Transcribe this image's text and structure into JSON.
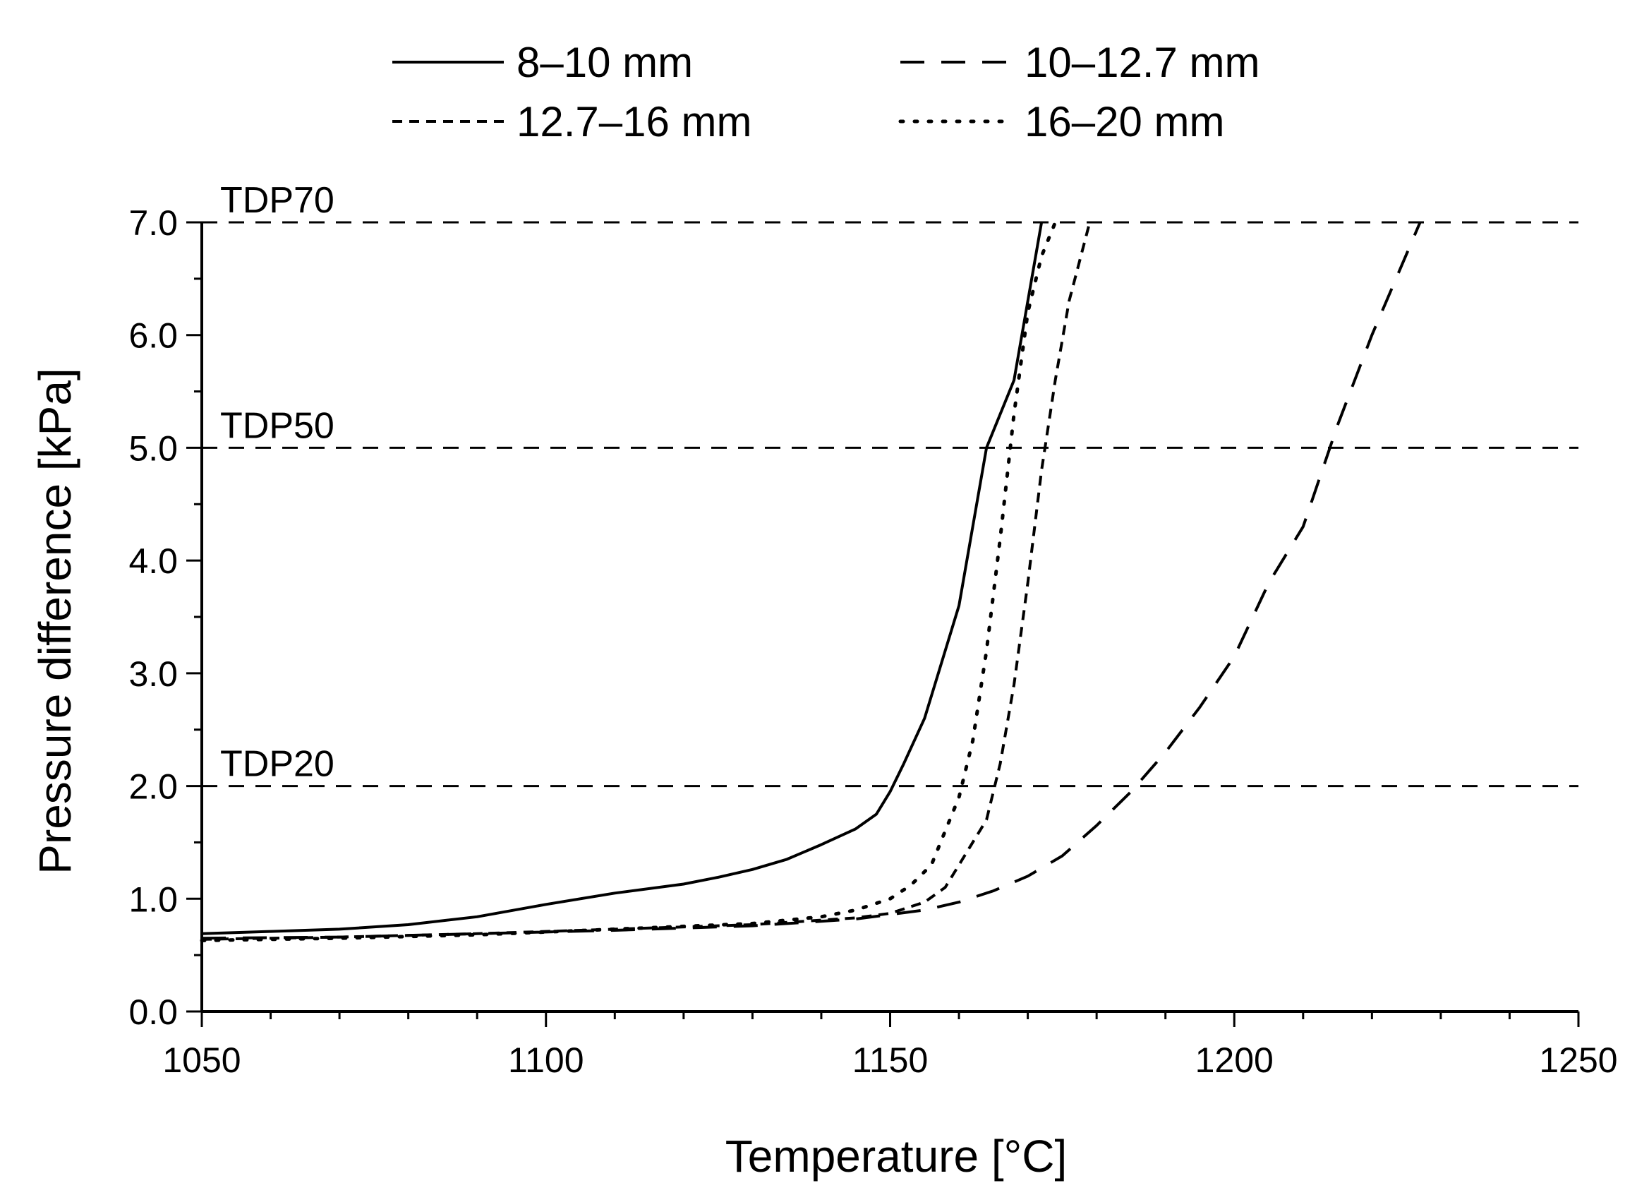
{
  "chart_data": {
    "type": "line",
    "xlabel": "Temperature [°C]",
    "ylabel": "Pressure difference [kPa]",
    "xlim": [
      1050,
      1250
    ],
    "ylim": [
      0,
      7
    ],
    "x_ticks": [
      1050,
      1100,
      1150,
      1200,
      1250
    ],
    "x_tick_labels": [
      "1050",
      "1100",
      "1150",
      "1200",
      "1250"
    ],
    "x_minor_step": 10,
    "y_ticks": [
      0,
      1,
      2,
      3,
      4,
      5,
      6,
      7
    ],
    "y_tick_labels": [
      "0.0",
      "1.0",
      "2.0",
      "3.0",
      "4.0",
      "5.0",
      "6.0",
      "7.0"
    ],
    "y_minor_step": 0.5,
    "grid": false,
    "legend_position": "top",
    "thresholds": [
      {
        "label": "TDP70",
        "value": 7.0
      },
      {
        "label": "TDP50",
        "value": 5.0
      },
      {
        "label": "TDP20",
        "value": 2.0
      }
    ],
    "series": [
      {
        "name": "8–10 mm",
        "style": "solid",
        "x": [
          1050,
          1060,
          1070,
          1080,
          1090,
          1100,
          1110,
          1120,
          1125,
          1130,
          1135,
          1140,
          1145,
          1148,
          1150,
          1152,
          1155,
          1157,
          1160,
          1162,
          1164,
          1166,
          1168,
          1170,
          1172
        ],
        "y": [
          0.69,
          0.71,
          0.73,
          0.77,
          0.84,
          0.95,
          1.05,
          1.13,
          1.19,
          1.26,
          1.35,
          1.48,
          1.62,
          1.75,
          1.95,
          2.2,
          2.6,
          3.0,
          3.6,
          4.3,
          5.0,
          5.3,
          5.6,
          6.3,
          7.0
        ]
      },
      {
        "name": "10–12.7 mm",
        "style": "dashed",
        "x": [
          1050,
          1070,
          1090,
          1110,
          1130,
          1145,
          1155,
          1160,
          1165,
          1170,
          1175,
          1180,
          1185,
          1190,
          1195,
          1200,
          1205,
          1210,
          1215,
          1220,
          1227
        ],
        "y": [
          0.65,
          0.66,
          0.69,
          0.72,
          0.76,
          0.82,
          0.9,
          0.97,
          1.07,
          1.2,
          1.38,
          1.65,
          1.95,
          2.3,
          2.7,
          3.15,
          3.8,
          4.3,
          5.2,
          6.0,
          7.0
        ]
      },
      {
        "name": "12.7–16 mm",
        "style": "short-dash",
        "x": [
          1050,
          1070,
          1090,
          1110,
          1130,
          1145,
          1150,
          1155,
          1158,
          1160,
          1162,
          1164,
          1166,
          1168,
          1170,
          1172,
          1174,
          1176,
          1179
        ],
        "y": [
          0.64,
          0.66,
          0.69,
          0.73,
          0.77,
          0.83,
          0.87,
          0.97,
          1.1,
          1.3,
          1.5,
          1.7,
          2.2,
          2.9,
          3.8,
          4.8,
          5.6,
          6.3,
          7.0
        ]
      },
      {
        "name": "16–20 mm",
        "style": "dotted",
        "x": [
          1050,
          1070,
          1090,
          1110,
          1130,
          1140,
          1145,
          1150,
          1153,
          1156,
          1158,
          1160,
          1162,
          1164,
          1166,
          1168,
          1170,
          1172,
          1174
        ],
        "y": [
          0.63,
          0.65,
          0.68,
          0.73,
          0.78,
          0.84,
          0.9,
          1.0,
          1.12,
          1.3,
          1.6,
          1.9,
          2.4,
          3.2,
          4.2,
          5.3,
          6.2,
          6.7,
          7.0
        ]
      }
    ]
  }
}
